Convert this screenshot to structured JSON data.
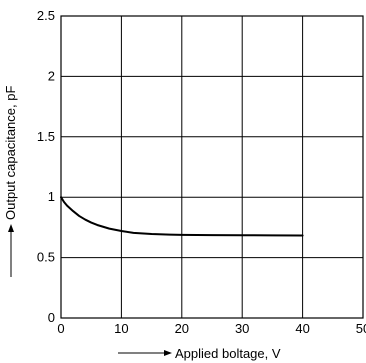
{
  "chart_data": {
    "type": "line",
    "title": "",
    "xlabel": "Applied boltage, V",
    "ylabel": "Output capacitance, pF",
    "xlim": [
      0,
      50
    ],
    "ylim": [
      0,
      2.5
    ],
    "x_ticks": [
      "0",
      "10",
      "20",
      "30",
      "40",
      "50"
    ],
    "y_ticks": [
      "0",
      "0.5",
      "1",
      "1.5",
      "2",
      "2.5"
    ],
    "grid": true,
    "legend": "none",
    "series": [
      {
        "x": [
          0,
          0.5,
          1,
          2,
          3,
          4,
          5,
          6,
          8,
          10,
          12,
          15,
          18,
          20,
          25,
          30,
          35,
          40
        ],
        "y": [
          1.0,
          0.96,
          0.93,
          0.885,
          0.845,
          0.815,
          0.79,
          0.77,
          0.74,
          0.72,
          0.705,
          0.695,
          0.69,
          0.688,
          0.686,
          0.685,
          0.684,
          0.683
        ]
      }
    ],
    "colors": {
      "line": "#000000",
      "grid": "#000000",
      "background": "#ffffff"
    }
  }
}
